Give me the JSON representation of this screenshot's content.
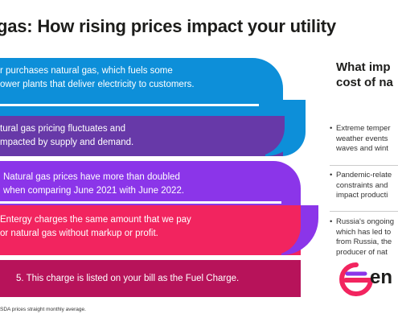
{
  "title": "gas: How rising prices impact your utility",
  "bands": [
    {
      "line1": "r purchases natural gas, which fuels some",
      "line2": "ower plants that deliver electricity to customers."
    },
    {
      "line1": "tural gas pricing fluctuates and",
      "line2": "mpacted by supply and demand."
    },
    {
      "line1": "Natural gas prices have more than doubled",
      "line2": "when comparing June 2021 with June 2022."
    },
    {
      "line1": "Entergy charges the same amount that we pay",
      "line2": "or natural gas without markup or profit."
    },
    {
      "line1": "5. This charge is listed on your bill as the Fuel Charge."
    }
  ],
  "footnote": "SDA prices straight monthly average.",
  "side": {
    "title_line1": "What imp",
    "title_line2": "cost of na",
    "items": [
      {
        "lines": [
          "Extreme temper",
          "weather events",
          "waves and wint"
        ]
      },
      {
        "lines": [
          "Pandemic-relate",
          "constraints and",
          "impact producti"
        ]
      },
      {
        "lines": [
          "Russia's ongoing",
          "which has led to",
          "from Russia, the",
          "producer of nat"
        ]
      }
    ],
    "bullet": "•"
  },
  "logo": {
    "text": "en",
    "colors": {
      "pink": "#f2245f",
      "purple": "#8b35e9"
    }
  },
  "colors": {
    "band1": "#0d8fd9",
    "band2": "#6739a8",
    "band3": "#8b35e9",
    "band4": "#f2245f",
    "band5": "#b7135a"
  }
}
